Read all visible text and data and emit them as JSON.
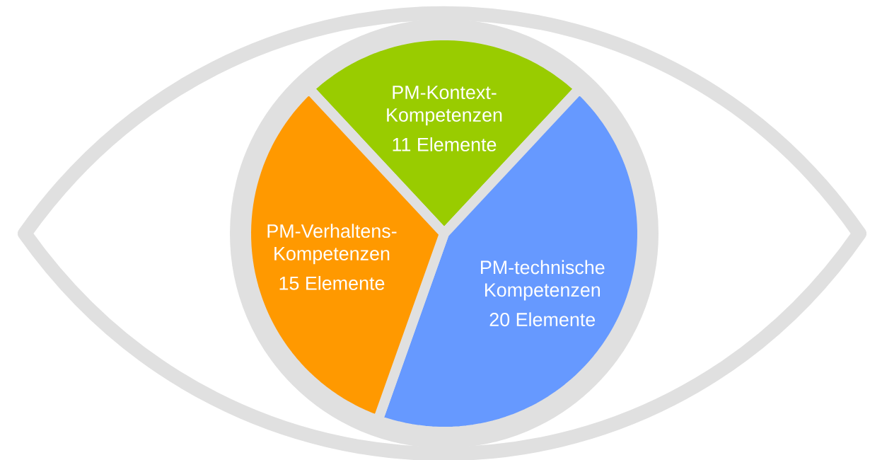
{
  "chart_data": {
    "type": "pie",
    "categories": [
      "PM-Kontext-Kompetenzen",
      "PM-technische Kompetenzen",
      "PM-Verhaltens-Kompetenzen"
    ],
    "values": [
      11,
      20,
      15
    ],
    "colors": [
      "#99cc00",
      "#6699ff",
      "#ff9900"
    ],
    "value_labels": [
      "11 Elemente",
      "20 Elemente",
      "15 Elemente"
    ]
  }
}
